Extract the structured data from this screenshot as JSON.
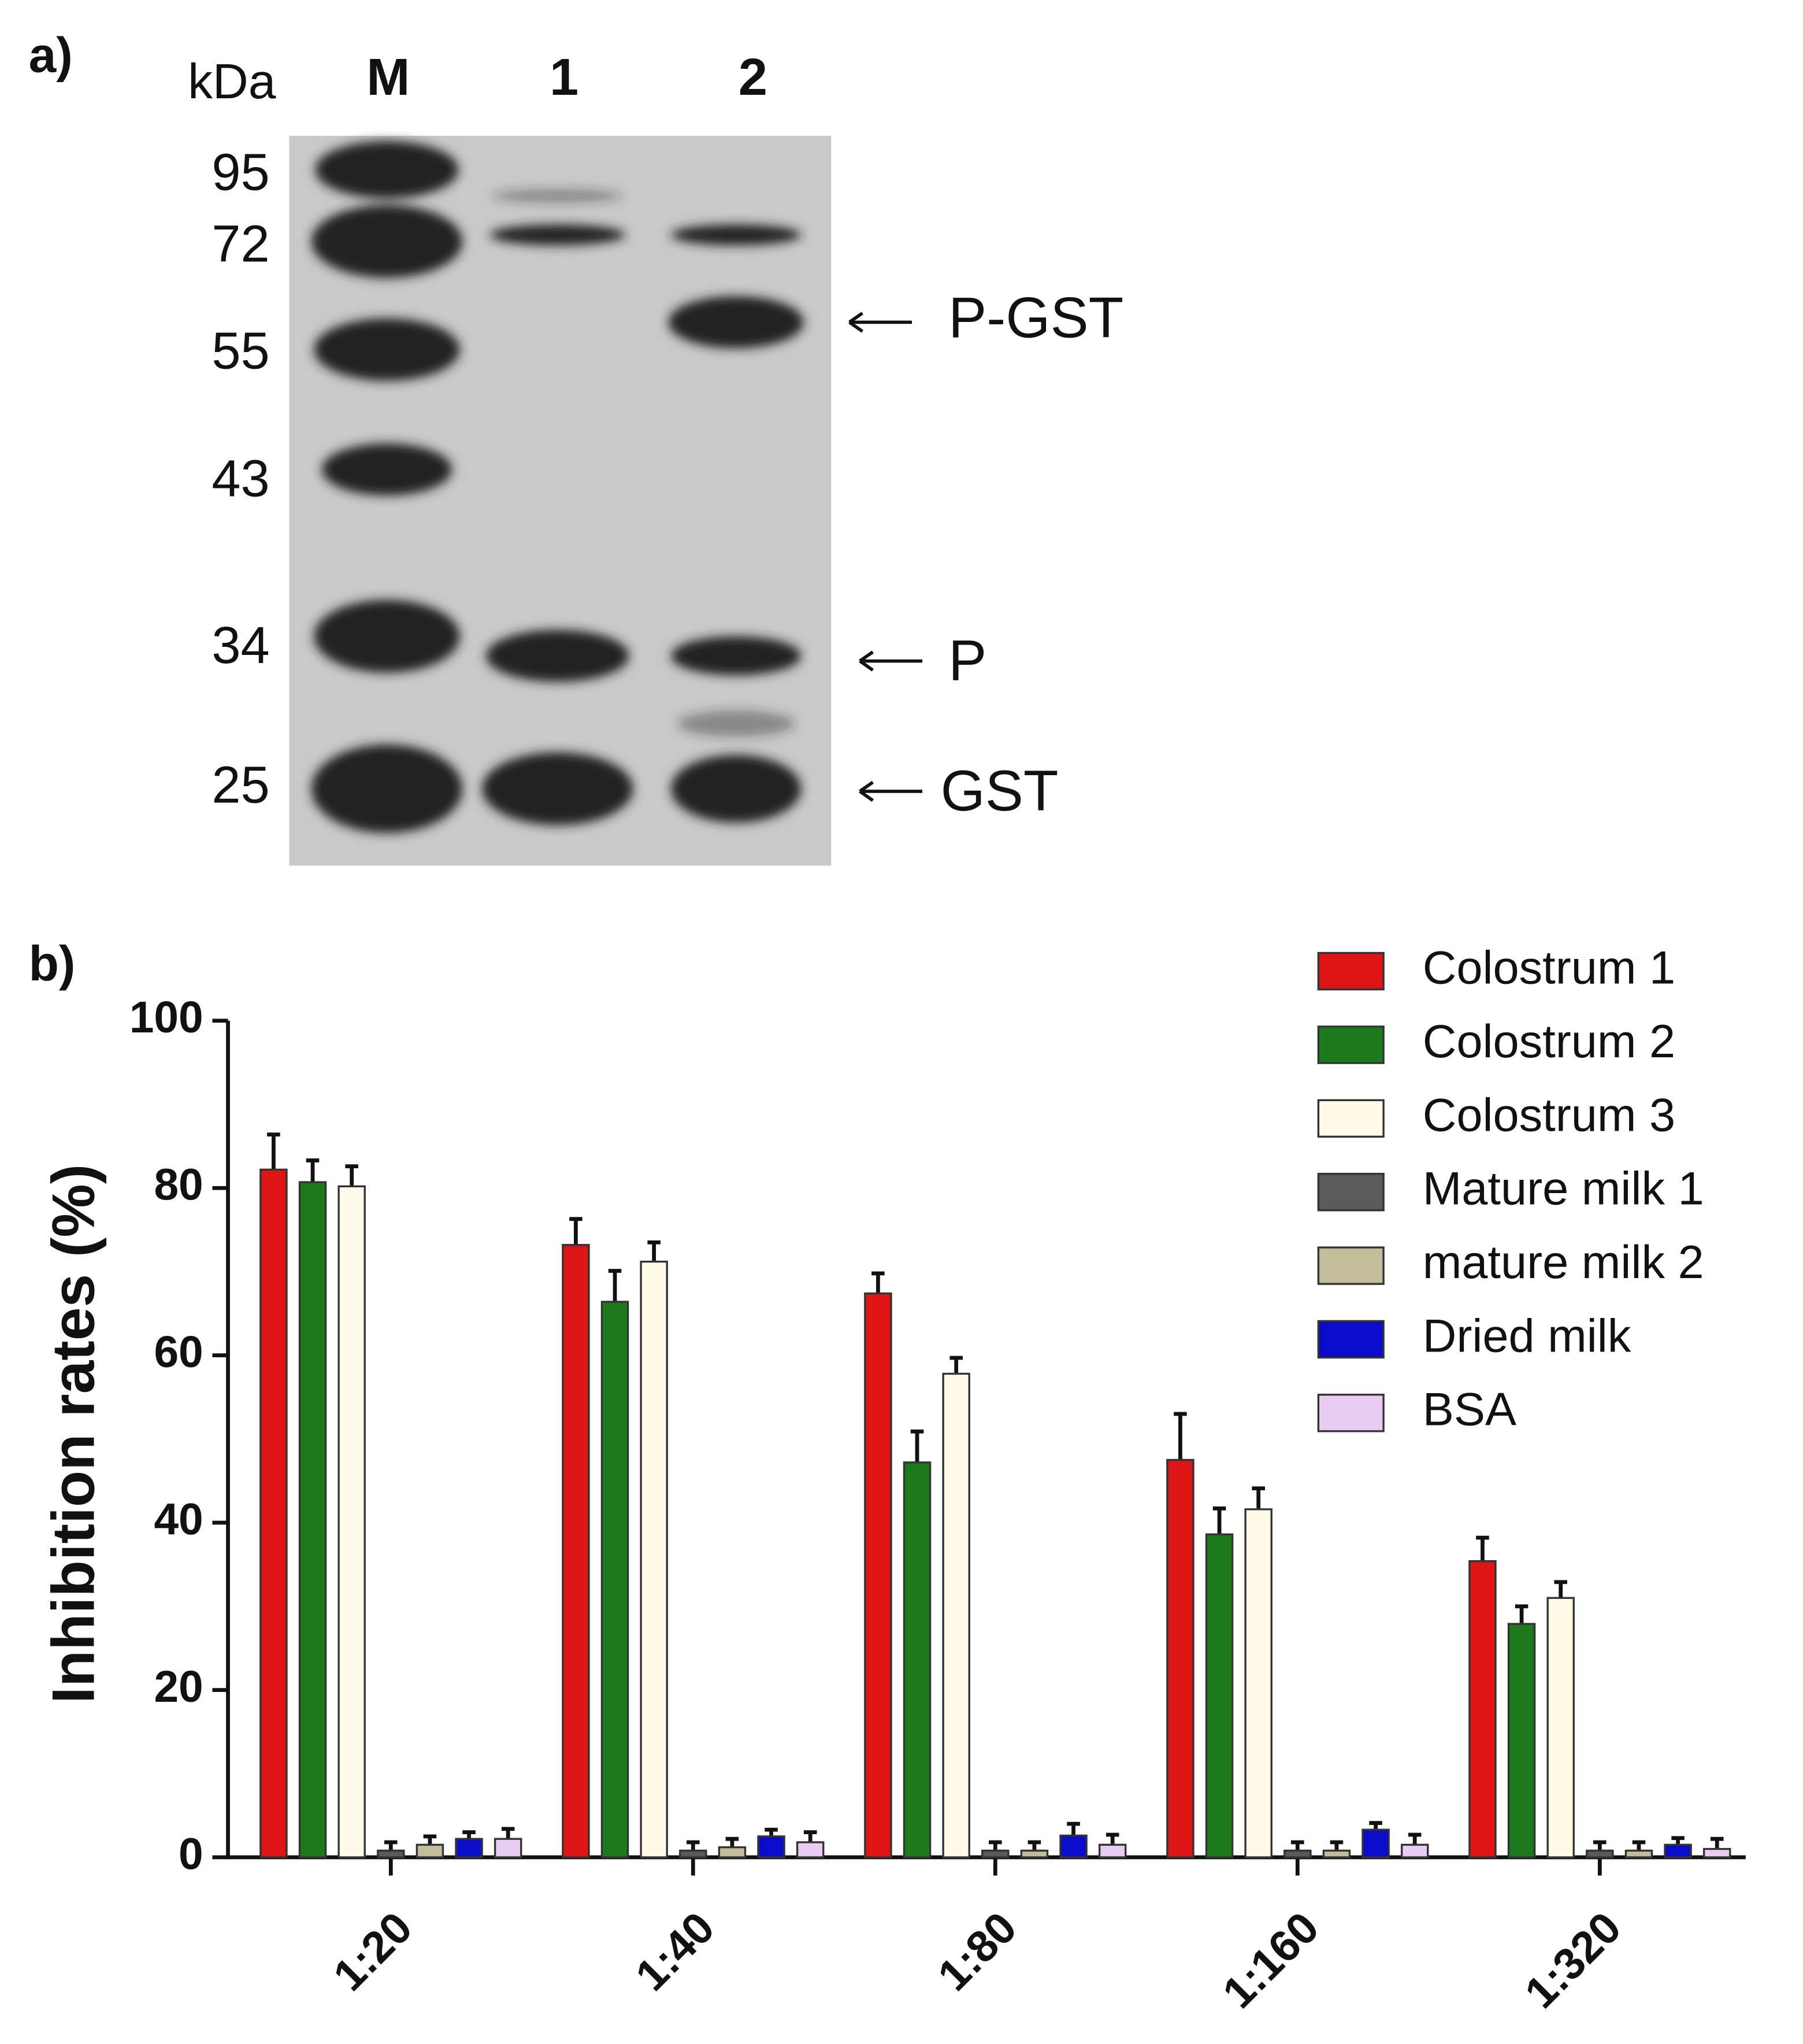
{
  "panel_a": {
    "label": "a)",
    "unit": "kDa",
    "lanes": [
      "M",
      "1",
      "2"
    ],
    "markers": [
      "95",
      "72",
      "55",
      "43",
      "34",
      "25"
    ],
    "annotations": [
      "P-GST",
      "P",
      "GST"
    ]
  },
  "chart_data": {
    "type": "bar",
    "panel_label": "b)",
    "y_label": "Inhibition rates (%)",
    "categories": [
      "1:20",
      "1:40",
      "1:80",
      "1:160",
      "1:320"
    ],
    "series": [
      {
        "name": "Colostrum 1",
        "color": "#dd1515",
        "values": [
          82.2,
          73.2,
          67.4,
          47.5,
          35.4
        ],
        "errors": [
          4.2,
          3.1,
          2.4,
          5.5,
          2.8
        ]
      },
      {
        "name": "Colostrum 2",
        "color": "#1c7a1c",
        "values": [
          80.7,
          66.4,
          47.2,
          38.6,
          27.9
        ],
        "errors": [
          2.6,
          3.7,
          3.7,
          3.1,
          2.1
        ]
      },
      {
        "name": "Colostrum 3",
        "color": "#fffbe8",
        "values": [
          80.2,
          71.2,
          57.8,
          41.6,
          31.0
        ],
        "errors": [
          2.4,
          2.3,
          1.9,
          2.5,
          1.9
        ]
      },
      {
        "name": "Mature milk 1",
        "color": "#5a5a5a",
        "values": [
          0.8,
          0.8,
          0.8,
          0.8,
          0.8
        ],
        "errors": [
          1.0,
          1.0,
          1.0,
          1.0,
          1.0
        ]
      },
      {
        "name": "mature milk 2",
        "color": "#c2bd98",
        "values": [
          1.5,
          1.2,
          0.8,
          0.8,
          0.8
        ],
        "errors": [
          1.0,
          1.0,
          1.0,
          1.0,
          1.0
        ]
      },
      {
        "name": "Dried milk",
        "color": "#0b0bcc",
        "values": [
          2.2,
          2.5,
          2.6,
          3.3,
          1.5
        ],
        "errors": [
          0.8,
          0.8,
          1.4,
          0.8,
          0.8
        ]
      },
      {
        "name": "BSA",
        "color": "#e8cdf2",
        "values": [
          2.2,
          1.8,
          1.5,
          1.5,
          1.0
        ],
        "errors": [
          1.2,
          1.2,
          1.2,
          1.2,
          1.2
        ]
      }
    ],
    "ylim": [
      0,
      100
    ],
    "yticks": [
      0,
      20,
      40,
      60,
      80,
      100
    ],
    "legend": "upper right"
  }
}
